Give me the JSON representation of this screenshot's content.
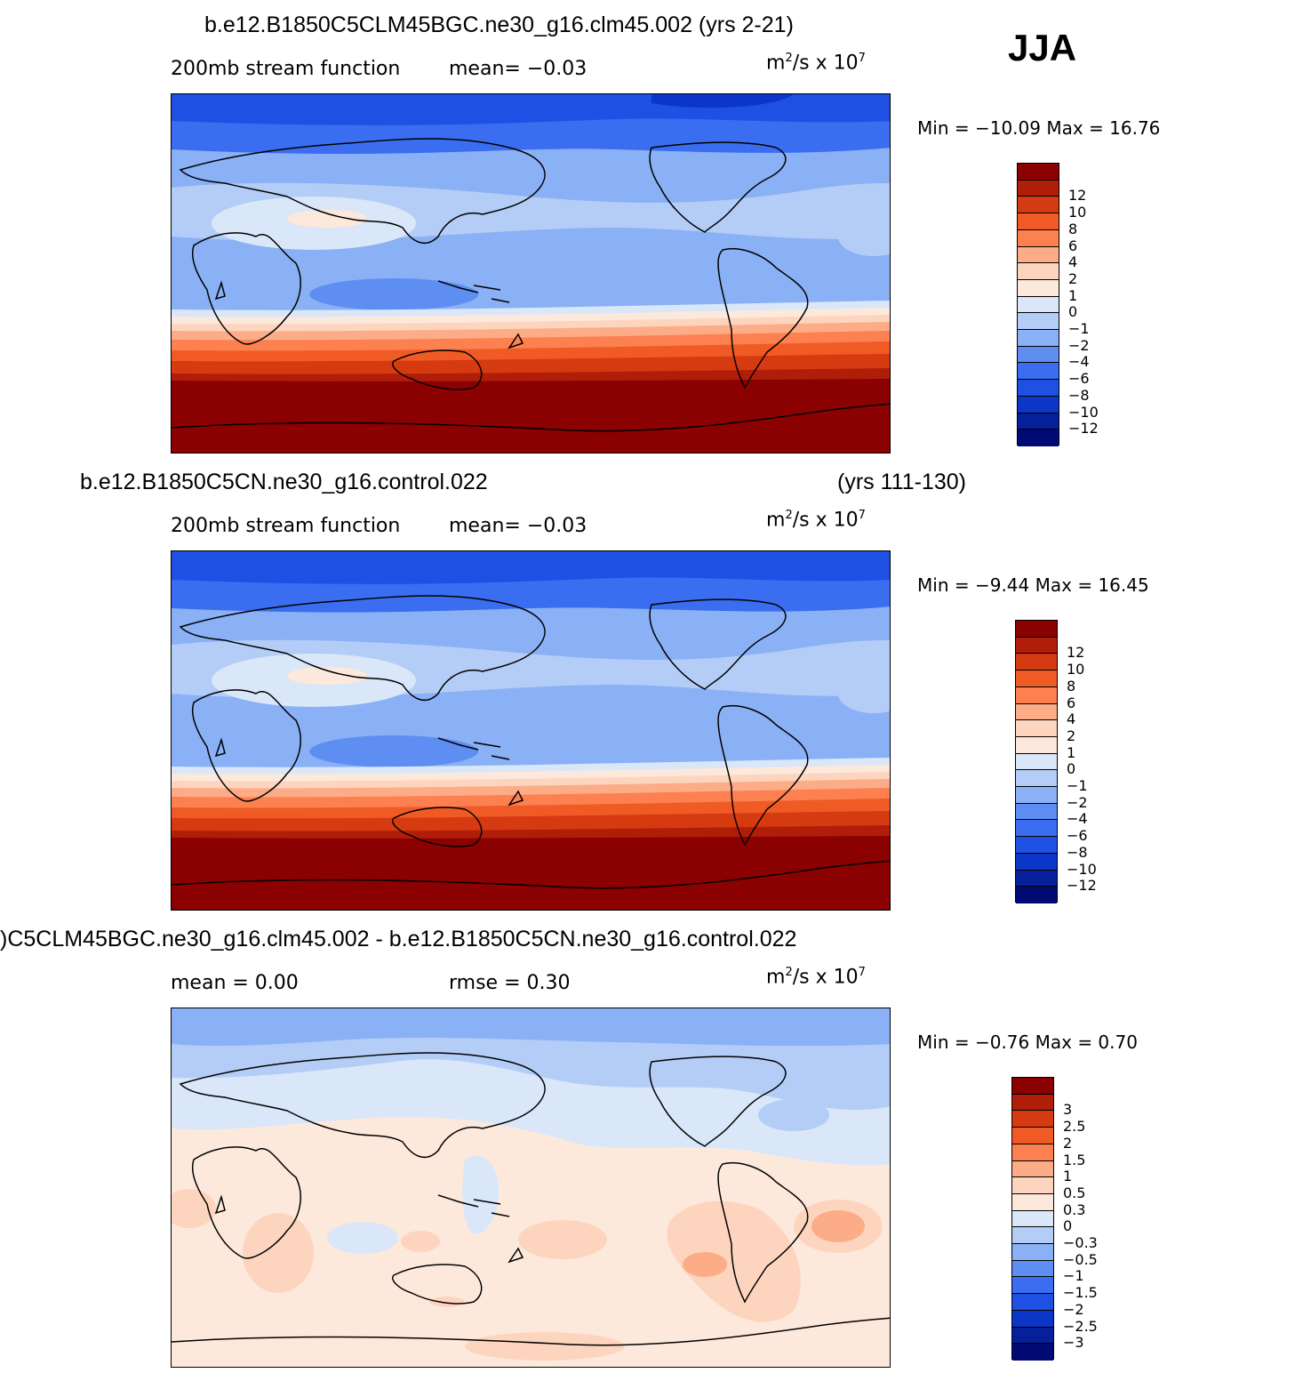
{
  "season": "JJA",
  "panels": [
    {
      "title": "b.e12.B1850C5CLM45BGC.ne30_g16.clm45.002 (yrs 2-21)",
      "title_right": "",
      "subtitle_left": "200mb stream function",
      "subtitle_mid": "mean=  −0.03",
      "units": "m",
      "units_exp": "2",
      "units_tail": "/s x 10",
      "units_exp2": "7",
      "minmax": "Min = −10.09 Max =  16.76",
      "colorbar": {
        "colors": [
          "#8b0000",
          "#b01e0a",
          "#d63a10",
          "#f05a25",
          "#fc8050",
          "#fcac87",
          "#fdd5bf",
          "#fde9dc",
          "#d9e7f9",
          "#b4cdf7",
          "#8ab0f5",
          "#5e8ef2",
          "#3a6def",
          "#1e50e3",
          "#0b36c8",
          "#05209a",
          "#000a72"
        ],
        "labels": [
          "12",
          "10",
          "8",
          "6",
          "4",
          "2",
          "1",
          "0",
          "−1",
          "−2",
          "−4",
          "−6",
          "−8",
          "−10",
          "−12"
        ]
      }
    },
    {
      "title": "b.e12.B1850C5CN.ne30_g16.control.022",
      "title_right": "(yrs 111-130)",
      "subtitle_left": "200mb stream function",
      "subtitle_mid": "mean=  −0.03",
      "units": "m",
      "units_exp": "2",
      "units_tail": "/s x 10",
      "units_exp2": "7",
      "minmax": "Min =  −9.44 Max =  16.45",
      "colorbar": {
        "colors": [
          "#8b0000",
          "#b01e0a",
          "#d63a10",
          "#f05a25",
          "#fc8050",
          "#fcac87",
          "#fdd5bf",
          "#fde9dc",
          "#d9e7f9",
          "#b4cdf7",
          "#8ab0f5",
          "#5e8ef2",
          "#3a6def",
          "#1e50e3",
          "#0b36c8",
          "#05209a",
          "#000a72"
        ],
        "labels": [
          "12",
          "10",
          "8",
          "6",
          "4",
          "2",
          "1",
          "0",
          "−1",
          "−2",
          "−4",
          "−6",
          "−8",
          "−10",
          "−12"
        ]
      }
    },
    {
      "title": ")C5CLM45BGC.ne30_g16.clm45.002 - b.e12.B1850C5CN.ne30_g16.control.022",
      "title_right": "",
      "subtitle_left": "mean =    0.00",
      "subtitle_mid": "rmse =    0.30",
      "units": "m",
      "units_exp": "2",
      "units_tail": "/s x 10",
      "units_exp2": "7",
      "minmax": "Min =  −0.76 Max =   0.70",
      "colorbar": {
        "colors": [
          "#8b0000",
          "#b01e0a",
          "#d63a10",
          "#f05a25",
          "#fc8050",
          "#fcac87",
          "#fdd5bf",
          "#fde9dc",
          "#d9e7f9",
          "#b4cdf7",
          "#8ab0f5",
          "#5e8ef2",
          "#3a6def",
          "#1e50e3",
          "#0b36c8",
          "#05209a",
          "#000a72"
        ],
        "labels": [
          "3",
          "2.5",
          "2",
          "1.5",
          "1",
          "0.5",
          "0.3",
          "0",
          "−0.3",
          "−0.5",
          "−1",
          "−1.5",
          "−2",
          "−2.5",
          "−3"
        ]
      }
    }
  ]
}
